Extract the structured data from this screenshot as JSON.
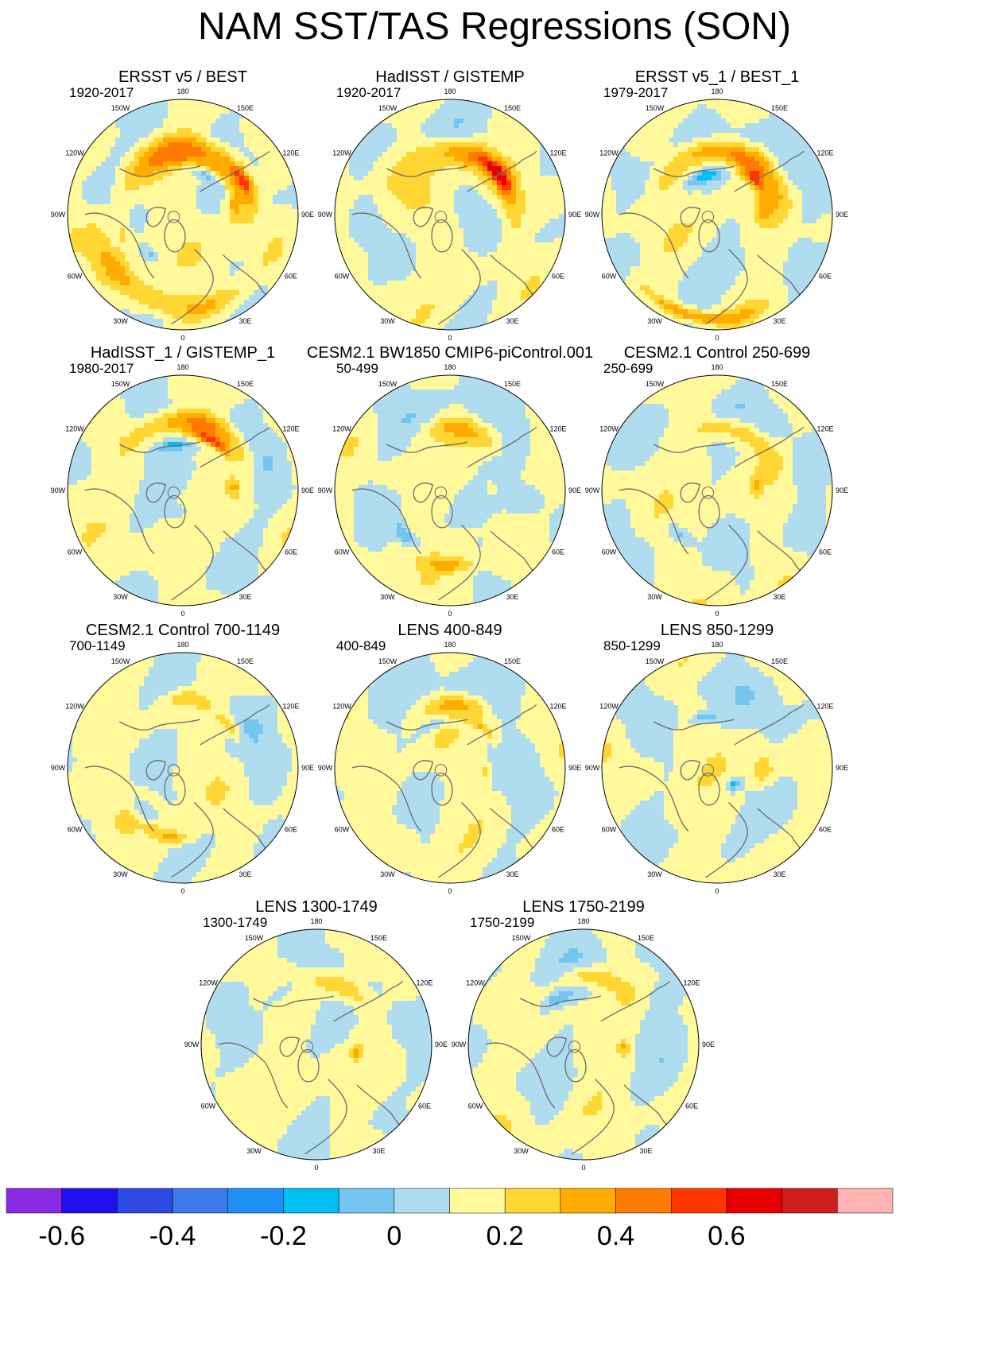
{
  "title": "NAM SST/TAS Regressions (SON)",
  "colors": {
    "coast": "#6b6b6b",
    "ice": "#ffffff",
    "frame": "#000000"
  },
  "longitude_labels": [
    "180",
    "150E",
    "120E",
    "90E",
    "60E",
    "30E",
    "0",
    "30W",
    "60W",
    "90W",
    "120W",
    "150W"
  ],
  "colorbar": {
    "colors": [
      "#8a2be2",
      "#1e10f0",
      "#2d49e4",
      "#3a7ae6",
      "#1f8ff5",
      "#00bff4",
      "#74c6f0",
      "#b0dcf0",
      "#fff99c",
      "#ffd633",
      "#ffab00",
      "#ff7a00",
      "#ff3600",
      "#e80000",
      "#d01d1d",
      "#ffb3b3"
    ],
    "ticks": [
      "-0.6",
      "-0.4",
      "-0.2",
      "0",
      "0.2",
      "0.4",
      "0.6"
    ]
  },
  "chart_data": {
    "type": "heatmap",
    "projection": "north polar stereographic",
    "units": "regression coefficient (SST/TAS on NAM index)",
    "levels": [
      -0.7,
      -0.6,
      -0.5,
      -0.4,
      -0.3,
      -0.2,
      -0.1,
      0,
      0.1,
      0.2,
      0.3,
      0.4,
      0.5,
      0.6,
      0.7
    ],
    "panels": [
      {
        "title": "ERSST v5 / BEST",
        "period": "1920-2017",
        "features": [
          {
            "lon": 165,
            "r": 0.55,
            "spread": 75,
            "width": 0.14,
            "value": 0.35
          },
          {
            "lon": 120,
            "r": 0.6,
            "spread": 15,
            "width": 0.06,
            "value": 0.3
          },
          {
            "lon": 150,
            "r": 0.4,
            "spread": 25,
            "width": 0.04,
            "value": -0.2
          },
          {
            "lon": 20,
            "r": 0.82,
            "spread": 45,
            "width": 0.1,
            "value": 0.18
          },
          {
            "lon": -45,
            "r": 0.75,
            "spread": 35,
            "width": 0.1,
            "value": 0.18
          },
          {
            "lon": -75,
            "r": 0.55,
            "spread": 20,
            "width": 0.08,
            "value": 0.12
          },
          {
            "lon": 100,
            "r": 0.45,
            "spread": 15,
            "width": 0.05,
            "value": 0.15
          },
          {
            "lon": -40,
            "r": 0.45,
            "spread": 10,
            "width": 0.04,
            "value": -0.15
          }
        ]
      },
      {
        "title": "HadISST / GISTEMP",
        "period": "1920-2017",
        "features": [
          {
            "lon": 160,
            "r": 0.55,
            "spread": 80,
            "width": 0.13,
            "value": 0.3
          },
          {
            "lon": 130,
            "r": 0.55,
            "spread": 20,
            "width": 0.06,
            "value": 0.3
          },
          {
            "lon": -150,
            "r": 0.55,
            "spread": 40,
            "width": 0.12,
            "value": -0.05
          },
          {
            "lon": -40,
            "r": 0.6,
            "spread": 30,
            "width": 0.12,
            "value": -0.05
          },
          {
            "lon": 60,
            "r": 0.45,
            "spread": 20,
            "width": 0.05,
            "value": -0.1
          }
        ]
      },
      {
        "title": "ERSST v5_1 / BEST_1",
        "period": "1979-2017",
        "features": [
          {
            "lon": 165,
            "r": 0.55,
            "spread": 60,
            "width": 0.11,
            "value": 0.35
          },
          {
            "lon": 135,
            "r": 0.45,
            "spread": 15,
            "width": 0.05,
            "value": 0.3
          },
          {
            "lon": -160,
            "r": 0.35,
            "spread": 25,
            "width": 0.05,
            "value": -0.25
          },
          {
            "lon": 95,
            "r": 0.4,
            "spread": 18,
            "width": 0.07,
            "value": 0.2
          },
          {
            "lon": -10,
            "r": 0.9,
            "spread": 30,
            "width": 0.05,
            "value": 0.3
          }
        ]
      },
      {
        "title": "HadISST_1 / GISTEMP_1",
        "period": "1980-2017",
        "features": [
          {
            "lon": 165,
            "r": 0.6,
            "spread": 55,
            "width": 0.1,
            "value": 0.3
          },
          {
            "lon": 150,
            "r": 0.5,
            "spread": 20,
            "width": 0.04,
            "value": 0.35
          },
          {
            "lon": -170,
            "r": 0.4,
            "spread": 25,
            "width": 0.05,
            "value": -0.25
          },
          {
            "lon": 92,
            "r": 0.45,
            "spread": 12,
            "width": 0.06,
            "value": 0.2
          },
          {
            "lon": 0,
            "r": 0.2,
            "spread": 60,
            "width": 0.08,
            "value": -0.1
          }
        ]
      },
      {
        "title": "CESM2.1 BW1850 CMIP6-piControl.001",
        "period": "50-499",
        "features": [
          {
            "lon": 170,
            "r": 0.55,
            "spread": 35,
            "width": 0.1,
            "value": 0.2
          },
          {
            "lon": 0,
            "r": 0.65,
            "spread": 20,
            "width": 0.06,
            "value": 0.2
          },
          {
            "lon": -45,
            "r": 0.55,
            "spread": 15,
            "width": 0.06,
            "value": -0.2
          },
          {
            "lon": 95,
            "r": 0.35,
            "spread": 10,
            "width": 0.04,
            "value": 0.15
          }
        ]
      },
      {
        "title": "CESM2.1 Control 250-699",
        "period": "250-699",
        "features": [
          {
            "lon": 160,
            "r": 0.55,
            "spread": 45,
            "width": 0.1,
            "value": 0.2
          },
          {
            "lon": -40,
            "r": 0.5,
            "spread": 15,
            "width": 0.06,
            "value": -0.2
          },
          {
            "lon": 95,
            "r": 0.35,
            "spread": 12,
            "width": 0.04,
            "value": 0.15
          }
        ]
      },
      {
        "title": "CESM2.1 Control 700-1149",
        "period": "700-1149",
        "features": [
          {
            "lon": 175,
            "r": 0.6,
            "spread": 25,
            "width": 0.08,
            "value": 0.15
          },
          {
            "lon": 130,
            "r": 0.55,
            "spread": 15,
            "width": 0.05,
            "value": 0.2
          },
          {
            "lon": -10,
            "r": 0.6,
            "spread": 18,
            "width": 0.06,
            "value": 0.2
          },
          {
            "lon": -45,
            "r": 0.5,
            "spread": 15,
            "width": 0.06,
            "value": -0.15
          }
        ]
      },
      {
        "title": "LENS 400-849",
        "period": "400-849",
        "features": [
          {
            "lon": 175,
            "r": 0.55,
            "spread": 35,
            "width": 0.09,
            "value": 0.2
          },
          {
            "lon": 140,
            "r": 0.45,
            "spread": 15,
            "width": 0.04,
            "value": 0.2
          },
          {
            "lon": -160,
            "r": 0.4,
            "spread": 25,
            "width": 0.04,
            "value": -0.15
          },
          {
            "lon": 85,
            "r": 0.3,
            "spread": 12,
            "width": 0.04,
            "value": 0.15
          }
        ]
      },
      {
        "title": "LENS 850-1299",
        "period": "850-1299",
        "features": [
          {
            "lon": 90,
            "r": 0.4,
            "spread": 18,
            "width": 0.08,
            "value": 0.2
          },
          {
            "lon": -165,
            "r": 0.45,
            "spread": 15,
            "width": 0.05,
            "value": -0.2
          },
          {
            "lon": 45,
            "r": 0.2,
            "spread": 20,
            "width": 0.05,
            "value": -0.25
          }
        ]
      },
      {
        "title": "LENS 1300-1749",
        "period": "1300-1749",
        "features": [
          {
            "lon": 165,
            "r": 0.55,
            "spread": 50,
            "width": 0.1,
            "value": 0.2
          },
          {
            "lon": -150,
            "r": 0.55,
            "spread": 25,
            "width": 0.08,
            "value": -0.2
          },
          {
            "lon": 80,
            "r": 0.35,
            "spread": 12,
            "width": 0.05,
            "value": 0.2
          }
        ]
      },
      {
        "title": "LENS 1750-2199",
        "period": "1750-2199",
        "features": [
          {
            "lon": 170,
            "r": 0.6,
            "spread": 30,
            "width": 0.08,
            "value": 0.2
          },
          {
            "lon": -150,
            "r": 0.45,
            "spread": 25,
            "width": 0.06,
            "value": -0.2
          },
          {
            "lon": 85,
            "r": 0.35,
            "spread": 12,
            "width": 0.06,
            "value": 0.2
          }
        ]
      }
    ]
  }
}
